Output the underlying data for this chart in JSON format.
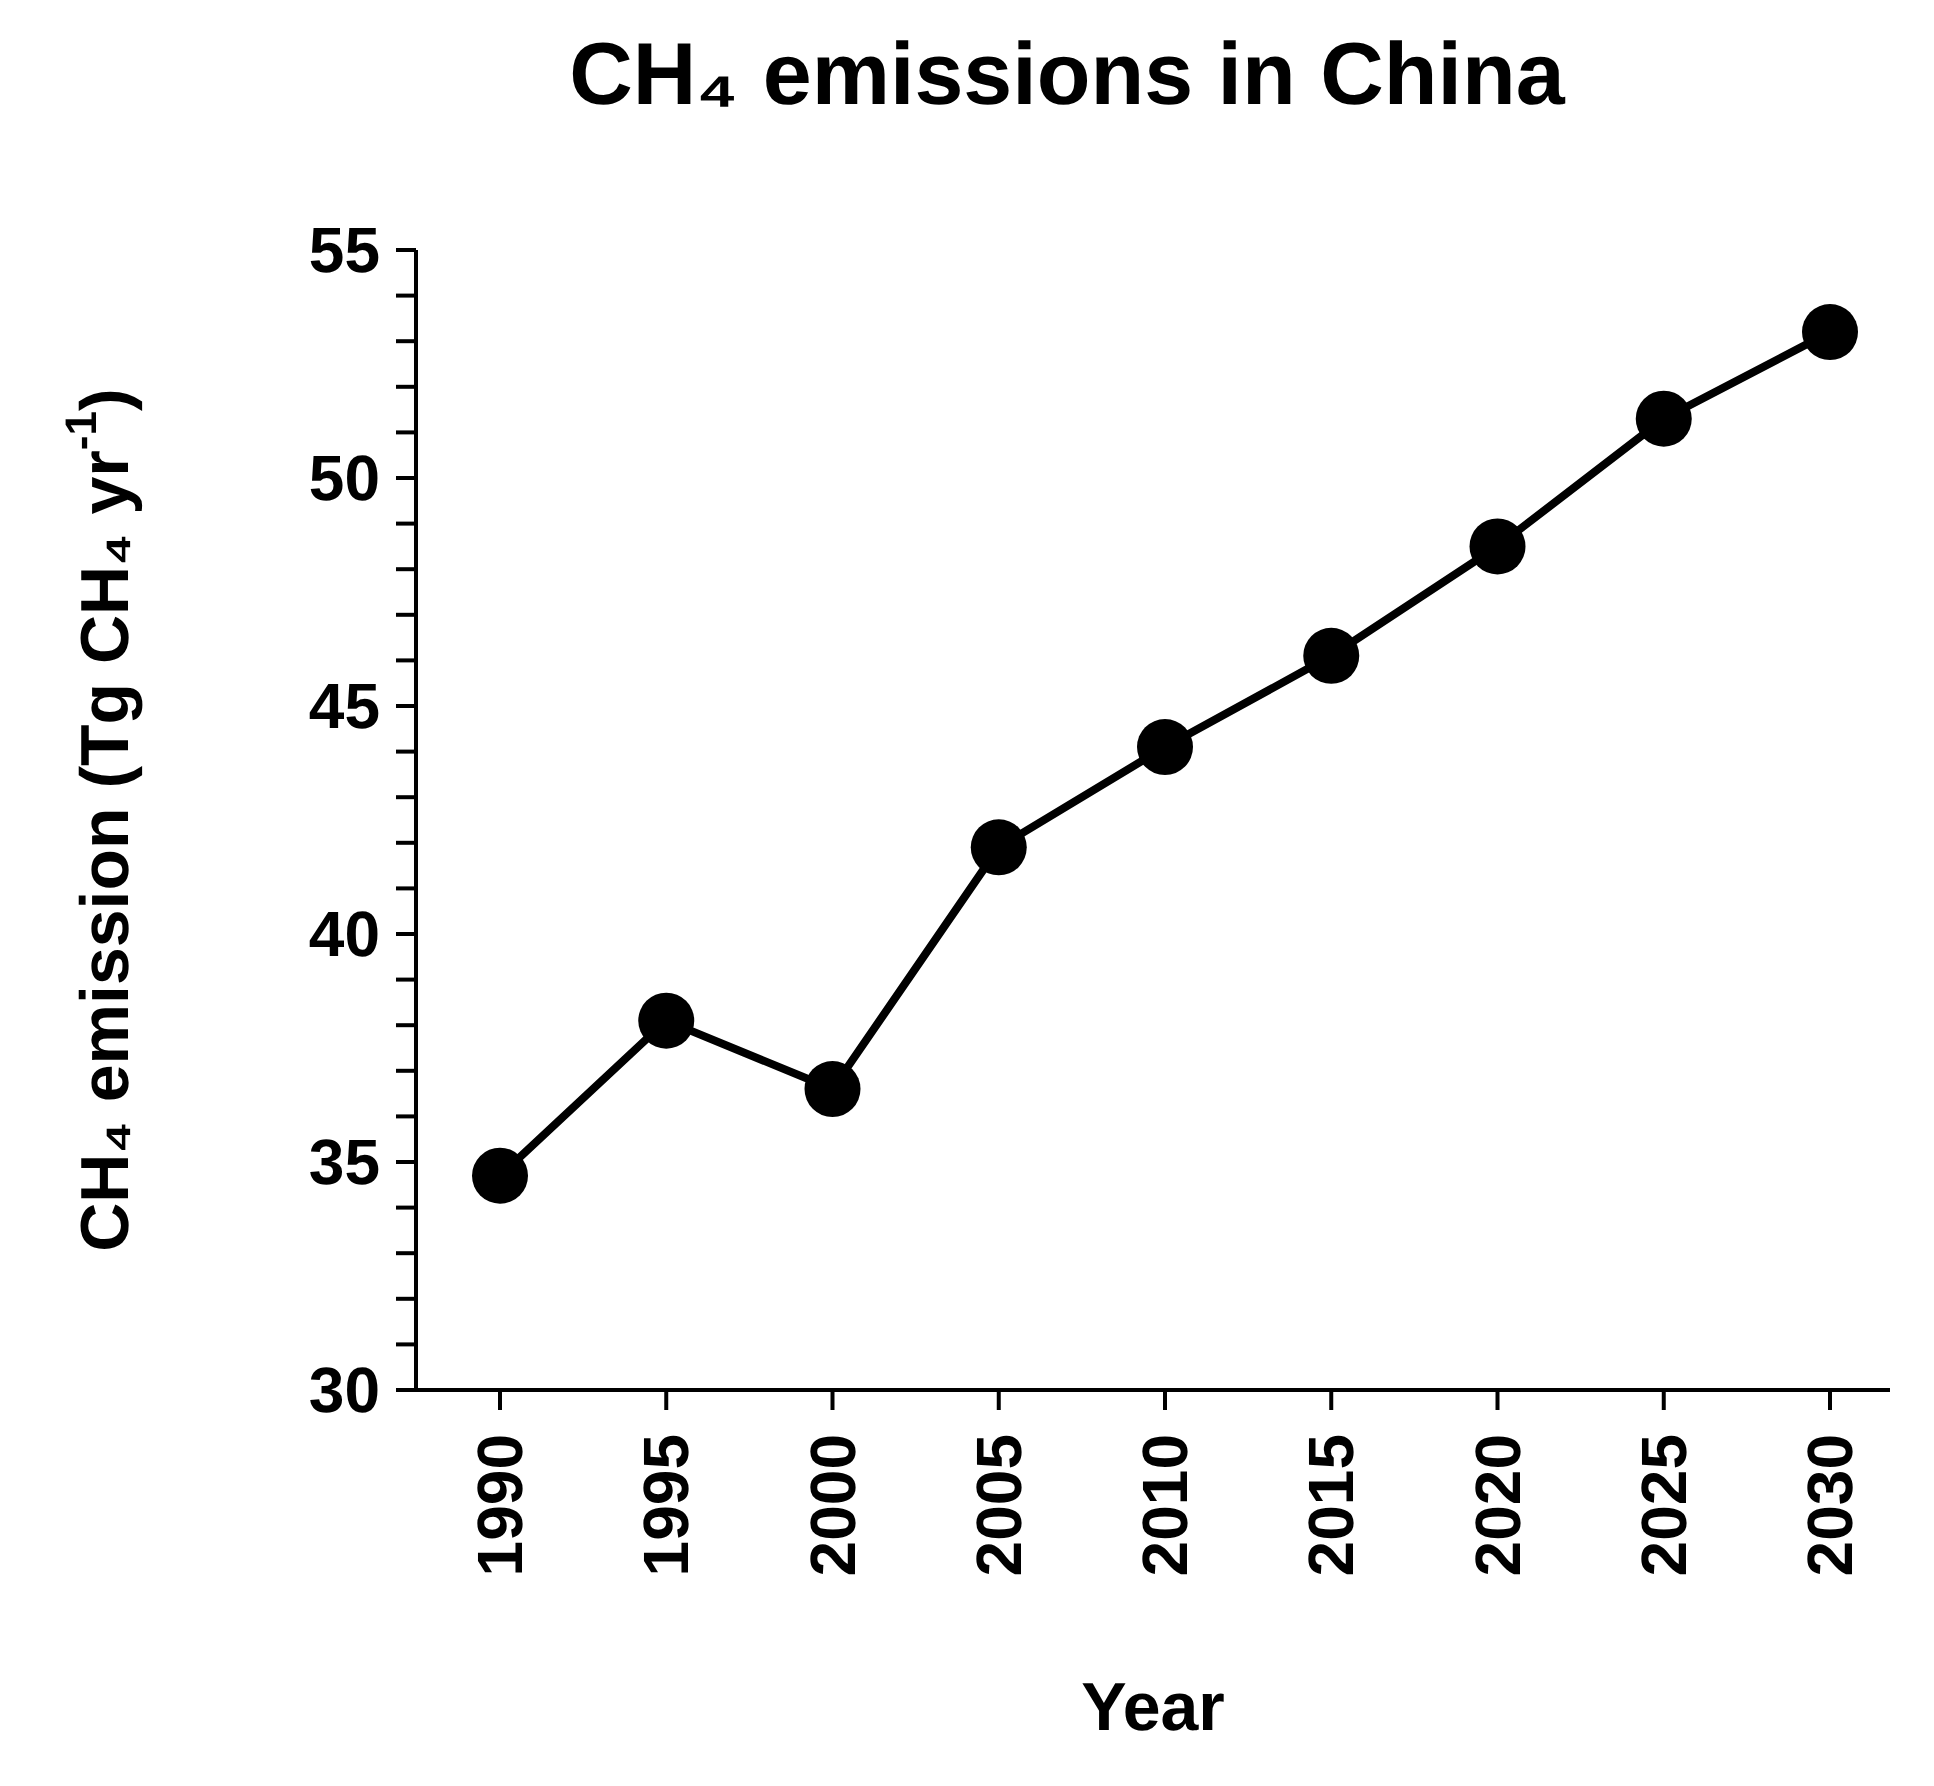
{
  "chart_data": {
    "type": "line",
    "title": "CH₄ emissions in China",
    "xlabel": "Year",
    "ylabel": "CH₄ emission (Tg CH₄ yr$^{-1}$)",
    "categories": [
      "1990",
      "1995",
      "2000",
      "2005",
      "2010",
      "2015",
      "2020",
      "2025",
      "2030"
    ],
    "series": [
      {
        "color": "#000000",
        "values": [
          34.7,
          38.1,
          36.6,
          41.9,
          44.1,
          46.1,
          48.5,
          51.3,
          53.2
        ]
      }
    ],
    "ylim": [
      30,
      55
    ],
    "yticks": [
      30,
      {
        "value": 31,
        "label": null
      },
      {
        "value": 32,
        "label": null
      },
      {
        "value": 33,
        "label": null
      },
      {
        "value": 34,
        "label": null
      },
      35,
      {
        "value": 36,
        "label": null
      },
      {
        "value": 37,
        "label": null
      },
      {
        "value": 38,
        "label": null
      },
      {
        "value": 39,
        "label": null
      },
      40,
      {
        "value": 41,
        "label": null
      },
      {
        "value": 42,
        "label": null
      },
      {
        "value": 43,
        "label": null
      },
      {
        "value": 44,
        "label": null
      },
      45,
      {
        "value": 46,
        "label": null
      },
      {
        "value": 47,
        "label": null
      },
      {
        "value": 48,
        "label": null
      },
      {
        "value": 49,
        "label": null
      },
      50,
      {
        "value": 51,
        "label": null
      },
      {
        "value": 52,
        "label": null
      },
      {
        "value": 53,
        "label": null
      },
      {
        "value": 54,
        "label": null
      },
      55
    ],
    "marker": "circle",
    "line_style": "solid"
  }
}
